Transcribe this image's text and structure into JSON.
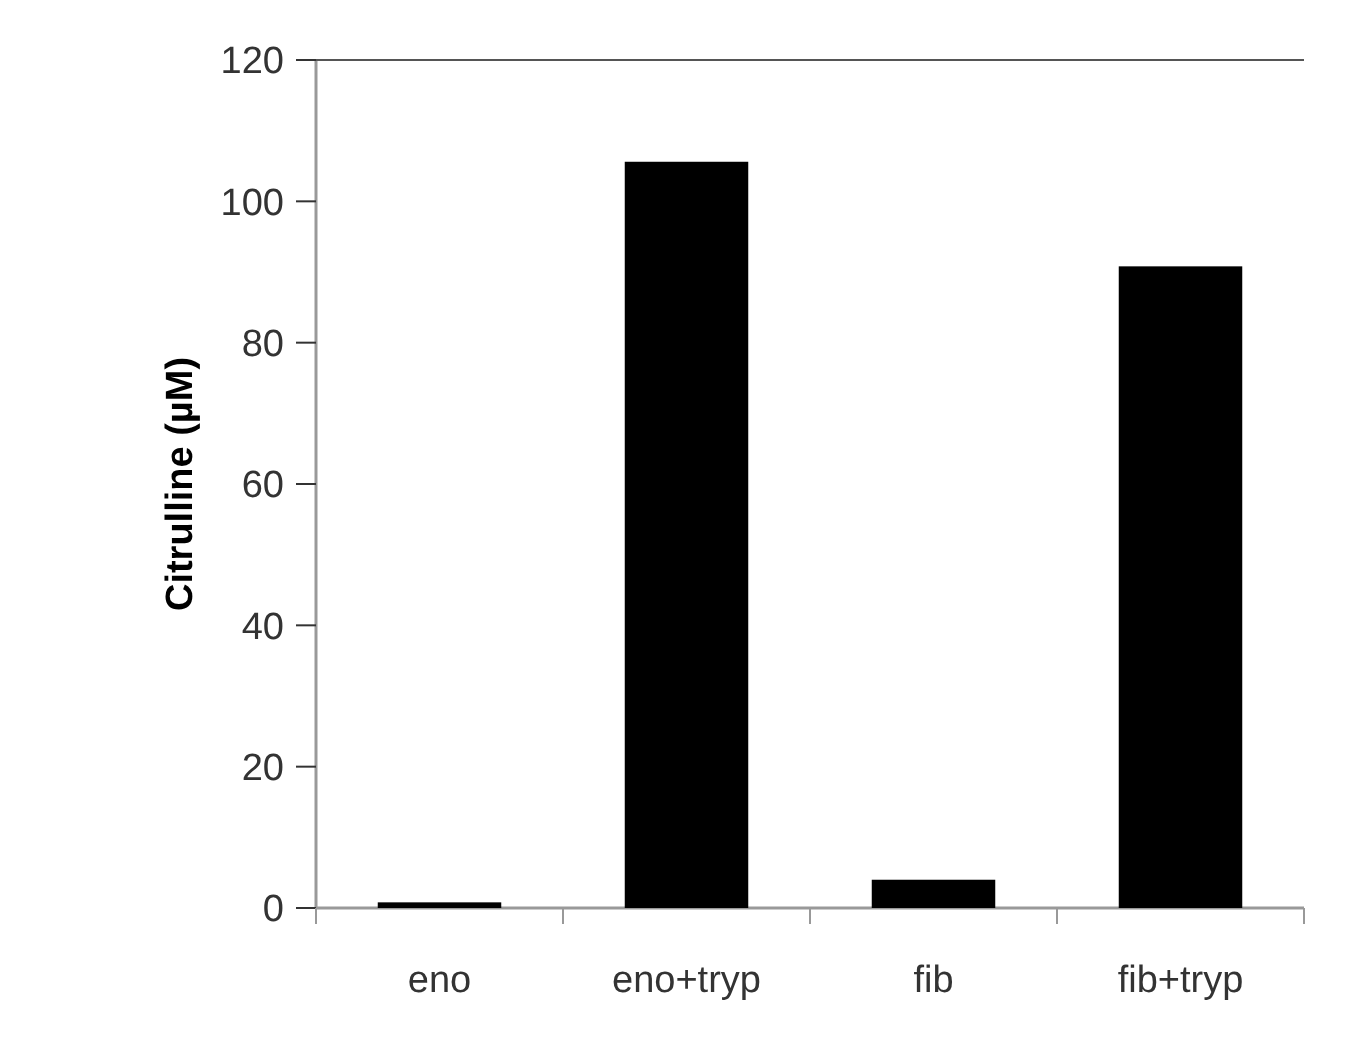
{
  "chart_data": {
    "type": "bar",
    "ylabel": "Citrulline (µM)",
    "categories": [
      "eno",
      "eno+tryp",
      "fib",
      "fib+tryp"
    ],
    "values": [
      0.8,
      105.6,
      4,
      90.8
    ],
    "color": "#000000",
    "ylim": [
      0,
      120
    ],
    "yticks": [
      0,
      20,
      40,
      60,
      80,
      100,
      120
    ]
  }
}
